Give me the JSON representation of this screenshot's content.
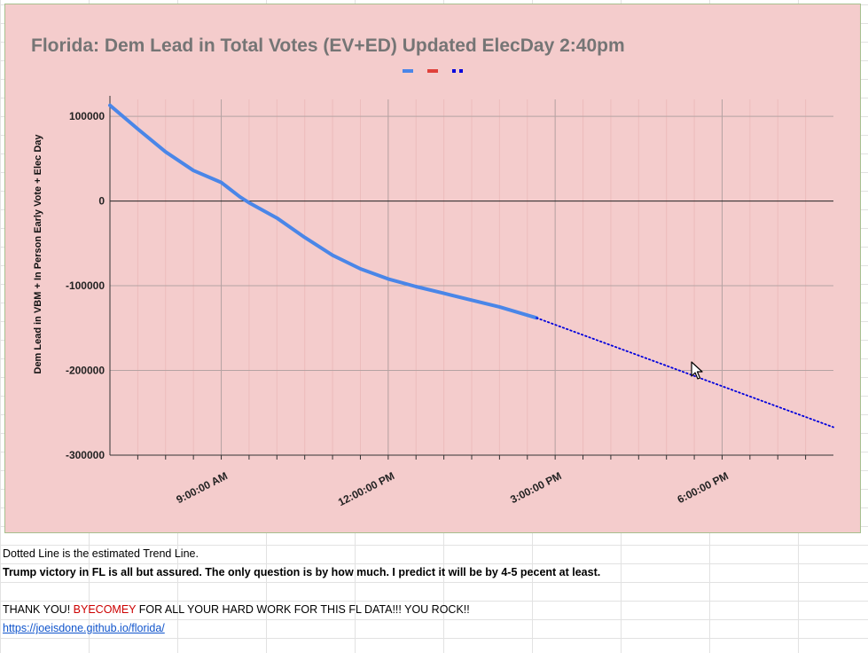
{
  "chart_data": {
    "type": "line",
    "title": "Florida: Dem Lead in Total Votes (EV+ED) Updated ElecDay 2:40pm",
    "ylabel": "Dem Lead in VBM + In Person Early Vote + Elec Day",
    "xlabel": "",
    "ylim": [
      -300000,
      120000
    ],
    "xlim": [
      "7:00:00 AM",
      "8:00:00 PM"
    ],
    "yticks": [
      100000,
      0,
      -100000,
      -200000,
      -300000
    ],
    "ytick_labels": [
      "100000",
      "0",
      "-100000",
      "-200000",
      "-300000"
    ],
    "xtick_labels": [
      "9:00:00 AM",
      "12:00:00 PM",
      "3:00:00 PM",
      "6:00:00 PM"
    ],
    "legend": "top",
    "grid": true,
    "background": "#f4cccc",
    "series": [
      {
        "color": "#4a86e8",
        "style": "solid",
        "x": [
          "7:00 AM",
          "7:30 AM",
          "8:00 AM",
          "8:30 AM",
          "9:00 AM",
          "9:20 AM",
          "9:30 AM",
          "10:00 AM",
          "10:30 AM",
          "11:00 AM",
          "11:30 AM",
          "12:00 PM",
          "12:30 PM",
          "1:00 PM",
          "1:30 PM",
          "2:00 PM",
          "2:40 PM"
        ],
        "y": [
          113000,
          85000,
          58000,
          36000,
          22000,
          5000,
          -2000,
          -20000,
          -43000,
          -64000,
          -80000,
          -92000,
          -101000,
          -109000,
          -117000,
          -125000,
          -138000
        ]
      },
      {
        "color": "#e0403a",
        "style": "solid",
        "x": [],
        "y": []
      },
      {
        "color": "#0000dd",
        "style": "dotted",
        "x": [
          "2:40 PM",
          "8:00 PM"
        ],
        "y": [
          -138000,
          -267000
        ]
      }
    ]
  },
  "notes": {
    "trend_line": "Dotted Line is the estimated Trend Line.",
    "prediction": "Trump victory in FL is all but assured.  The only question is by how much.  I predict it will be by 4-5 pecent at least.",
    "thanks_before": "THANK YOU! ",
    "thanks_highlight": "BYECOMEY",
    "thanks_after": " FOR ALL YOUR HARD WORK FOR THIS FL DATA!!!  YOU ROCK!!",
    "link": "https://joeisdone.github.io/florida/"
  }
}
